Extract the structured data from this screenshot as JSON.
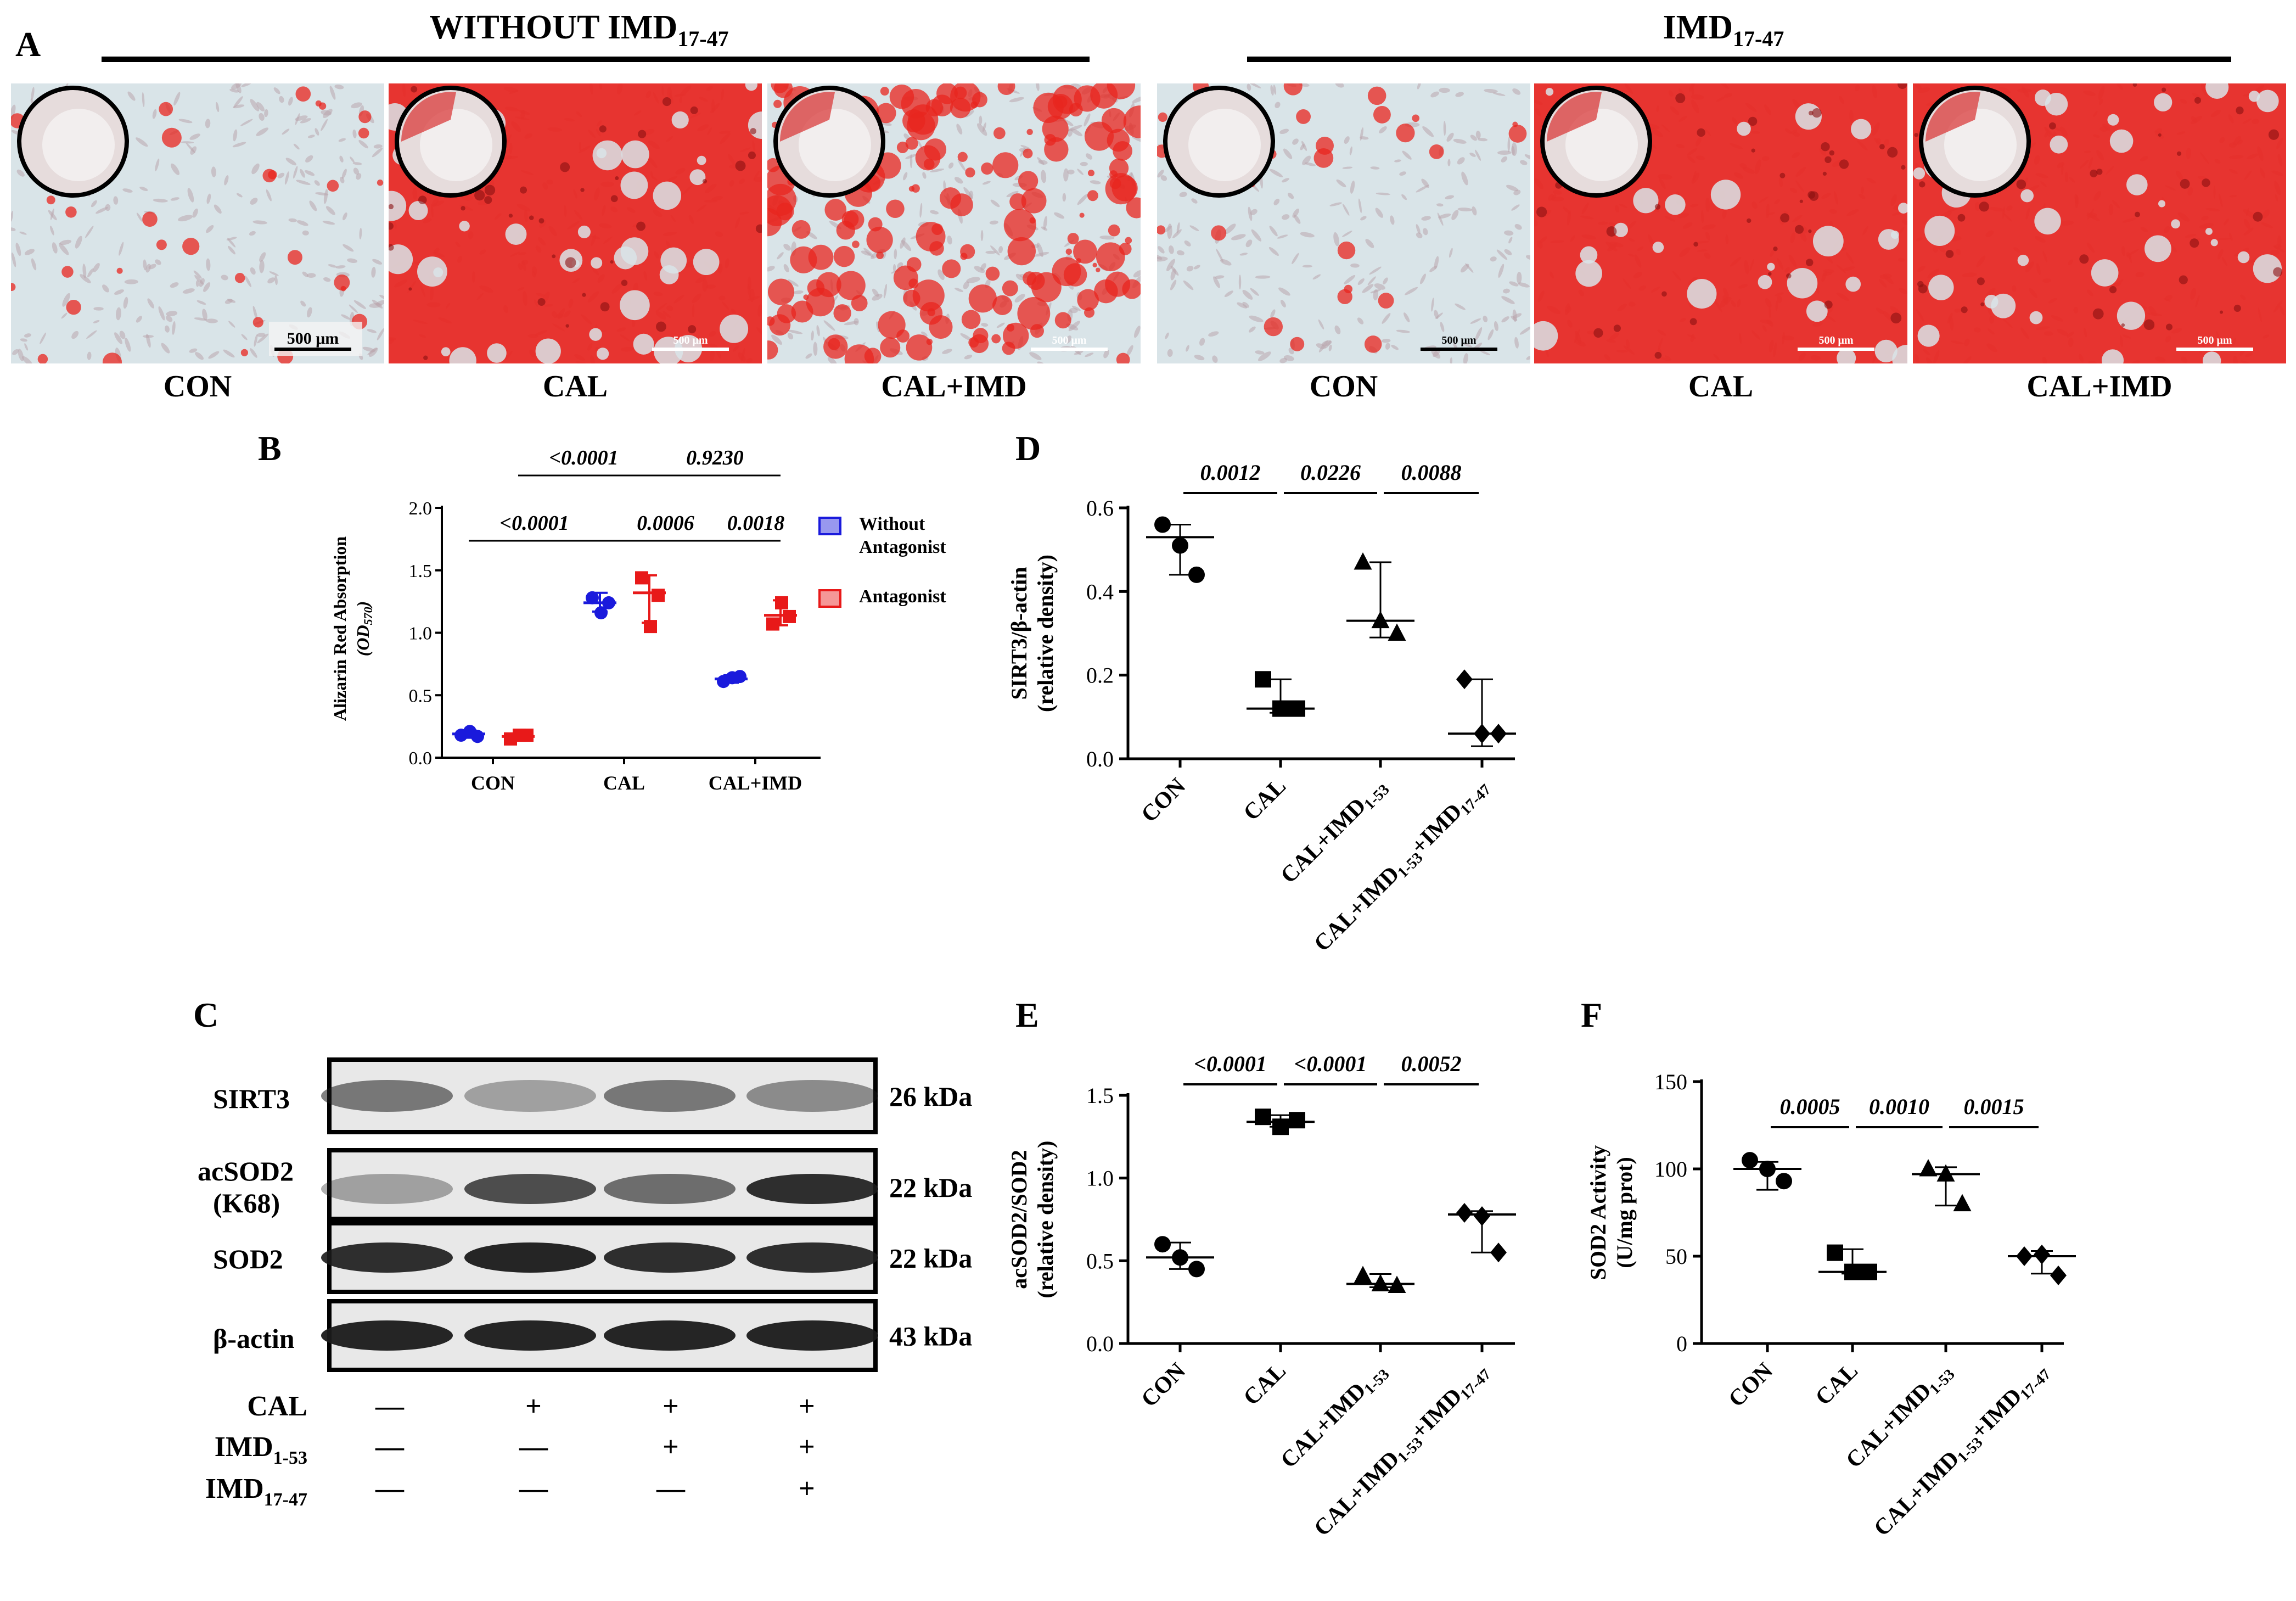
{
  "figure": {
    "panel_a": {
      "letter": "A",
      "group_left": {
        "title": "WITHOUT IMD",
        "sub": "17-47"
      },
      "group_right": {
        "title": "IMD",
        "sub": "17-47"
      },
      "images": [
        {
          "label": "CON",
          "scale": "500 μm",
          "stain": 0.06
        },
        {
          "label": "CAL",
          "scale": "500 μm",
          "stain": 0.8
        },
        {
          "label": "CAL+IMD",
          "scale": "500 μm",
          "stain": 0.4
        },
        {
          "label": "CON",
          "scale": "500 μm",
          "stain": 0.05
        },
        {
          "label": "CAL",
          "scale": "500 μm",
          "stain": 0.9
        },
        {
          "label": "CAL+IMD",
          "scale": "500 μm",
          "stain": 0.85
        }
      ],
      "colors": {
        "stain": "#e8251f",
        "background": "#d9e4e8"
      }
    },
    "panel_c": {
      "letter": "C",
      "bands": [
        {
          "name": "SIRT3",
          "kda": "26 kDa"
        },
        {
          "name": "acSOD2",
          "name2": "(K68)",
          "kda": "22 kDa"
        },
        {
          "name": "SOD2",
          "kda": "22 kDa"
        },
        {
          "name": "β-actin",
          "kda": "43 kDa"
        }
      ],
      "treatments": [
        {
          "name": "CAL",
          "sub": "",
          "marks": [
            "—",
            "+",
            "+",
            "+"
          ]
        },
        {
          "name": "IMD",
          "sub": "1-53",
          "marks": [
            "—",
            "—",
            "+",
            "+"
          ]
        },
        {
          "name": "IMD",
          "sub": "17-47",
          "marks": [
            "—",
            "—",
            "—",
            "+"
          ]
        }
      ]
    }
  },
  "chart_data": [
    {
      "panel": "B",
      "type": "scatter",
      "ylabel": "Alizarin Red Absorption",
      "ylabel2": "(OD",
      "ylabel2_sub": "570",
      "ylabel2_end": ")",
      "ylim": [
        0,
        2.0
      ],
      "yticks": [
        "0.0",
        "0.5",
        "1.0",
        "1.5",
        "2.0"
      ],
      "categories": [
        "CON",
        "CAL",
        "CAL+IMD"
      ],
      "legend": {
        "position": "right",
        "entries": [
          {
            "line1": "Without",
            "line2": "Antagonist"
          },
          {
            "line1": "Antagonist",
            "line2": ""
          }
        ]
      },
      "series": [
        {
          "name": "Without Antagonist",
          "color": "#1a1adc",
          "points": [
            [
              0.18,
              0.21,
              0.17
            ],
            [
              1.28,
              1.16,
              1.24
            ],
            [
              0.61,
              0.64,
              0.65
            ]
          ],
          "center": [
            0.19,
            1.24,
            0.63
          ],
          "err": [
            [
              0.16,
              0.22
            ],
            [
              1.17,
              1.32
            ],
            [
              0.6,
              0.66
            ]
          ]
        },
        {
          "name": "Antagonist",
          "color": "#e81919",
          "points": [
            [
              0.15,
              0.18,
              0.18
            ],
            [
              1.44,
              1.05,
              1.3
            ],
            [
              1.07,
              1.24,
              1.13
            ]
          ],
          "center": [
            0.17,
            1.32,
            1.14
          ],
          "err": [
            [
              0.15,
              0.19
            ],
            [
              1.08,
              1.46
            ],
            [
              1.06,
              1.26
            ]
          ]
        }
      ],
      "comparisons": [
        {
          "label": "<0.0001",
          "from": [
            0,
            0
          ],
          "to": [
            1,
            0
          ],
          "level": 0
        },
        {
          "label": "<0.0001",
          "from": [
            0,
            1
          ],
          "to": [
            1,
            1
          ],
          "level": 1
        },
        {
          "label": "0.0006",
          "from": [
            1,
            0
          ],
          "to": [
            2,
            0
          ],
          "level": 0
        },
        {
          "label": "0.9230",
          "from": [
            1,
            1
          ],
          "to": [
            2,
            1
          ],
          "level": 1
        },
        {
          "label": "0.0018",
          "from": [
            2,
            0
          ],
          "to": [
            2,
            1
          ],
          "level": 0
        }
      ]
    },
    {
      "panel": "D",
      "type": "scatter",
      "ylabel": "SIRT3/β-actin",
      "ylabel2": "(relative density)",
      "ylim": [
        0,
        0.6
      ],
      "yticks": [
        "0.0",
        "0.2",
        "0.4",
        "0.6"
      ],
      "categories": [
        {
          "parts": [
            [
              "CON",
              ""
            ]
          ]
        },
        {
          "parts": [
            [
              "CAL",
              ""
            ]
          ]
        },
        {
          "parts": [
            [
              "CAL+IMD",
              ""
            ],
            [
              "1-53",
              "sub"
            ]
          ]
        },
        {
          "parts": [
            [
              "CAL+IMD",
              ""
            ],
            [
              "1-53",
              "sub"
            ],
            [
              "+IMD",
              ""
            ],
            [
              "17-47",
              "sub"
            ]
          ]
        }
      ],
      "markers": [
        "circle",
        "square",
        "triangle",
        "diamond"
      ],
      "points": [
        [
          0.56,
          0.51,
          0.44
        ],
        [
          0.19,
          0.12,
          0.12
        ],
        [
          0.47,
          0.33,
          0.3
        ],
        [
          0.19,
          0.06,
          0.06
        ]
      ],
      "center": [
        0.53,
        0.12,
        0.33,
        0.06
      ],
      "err": [
        [
          0.44,
          0.56
        ],
        [
          0.11,
          0.19
        ],
        [
          0.29,
          0.47
        ],
        [
          0.03,
          0.19
        ]
      ],
      "comparisons": [
        {
          "label": "0.0012",
          "from": 0,
          "to": 1
        },
        {
          "label": "0.0226",
          "from": 1,
          "to": 2
        },
        {
          "label": "0.0088",
          "from": 2,
          "to": 3
        }
      ]
    },
    {
      "panel": "E",
      "type": "scatter",
      "ylabel": "acSOD2/SOD2",
      "ylabel2": "(relative density)",
      "ylim": [
        0,
        1.5
      ],
      "yticks": [
        "0.0",
        "0.5",
        "1.0",
        "1.5"
      ],
      "categories": [
        {
          "parts": [
            [
              "CON",
              ""
            ]
          ]
        },
        {
          "parts": [
            [
              "CAL",
              ""
            ]
          ]
        },
        {
          "parts": [
            [
              "CAL+IMD",
              ""
            ],
            [
              "1-53",
              "sub"
            ]
          ]
        },
        {
          "parts": [
            [
              "CAL+IMD",
              ""
            ],
            [
              "1-53",
              "sub"
            ],
            [
              "+IMD",
              ""
            ],
            [
              "17-47",
              "sub"
            ]
          ]
        }
      ],
      "markers": [
        "circle",
        "square",
        "triangle",
        "diamond"
      ],
      "points": [
        [
          0.6,
          0.52,
          0.45
        ],
        [
          1.37,
          1.31,
          1.35
        ],
        [
          0.41,
          0.36,
          0.35
        ],
        [
          0.79,
          0.77,
          0.55
        ]
      ],
      "center": [
        0.52,
        1.34,
        0.36,
        0.78
      ],
      "err": [
        [
          0.45,
          0.61
        ],
        [
          1.31,
          1.38
        ],
        [
          0.34,
          0.42
        ],
        [
          0.55,
          0.8
        ]
      ],
      "comparisons": [
        {
          "label": "<0.0001",
          "from": 0,
          "to": 1
        },
        {
          "label": "<0.0001",
          "from": 1,
          "to": 2
        },
        {
          "label": "0.0052",
          "from": 2,
          "to": 3
        }
      ]
    },
    {
      "panel": "F",
      "type": "scatter",
      "ylabel": "SOD2 Activity",
      "ylabel2": "(U/mg prot)",
      "ylim": [
        0,
        150
      ],
      "yticks": [
        "0",
        "50",
        "100",
        "150"
      ],
      "categories": [
        {
          "parts": [
            [
              "CON",
              ""
            ]
          ]
        },
        {
          "parts": [
            [
              "CAL",
              ""
            ]
          ]
        },
        {
          "parts": [
            [
              "CAL+IMD",
              ""
            ],
            [
              "1-53",
              "sub"
            ]
          ]
        },
        {
          "parts": [
            [
              "CAL+IMD",
              ""
            ],
            [
              "1-53",
              "sub"
            ],
            [
              "+IMD",
              ""
            ],
            [
              "17-47",
              "sub"
            ]
          ]
        }
      ],
      "markers": [
        "circle",
        "square",
        "triangle",
        "diamond"
      ],
      "points": [
        [
          105,
          100,
          93
        ],
        [
          52,
          41,
          41
        ],
        [
          100,
          97,
          80
        ],
        [
          50,
          51,
          39
        ]
      ],
      "center": [
        100,
        41,
        97,
        50
      ],
      "err": [
        [
          88,
          104
        ],
        [
          40,
          54
        ],
        [
          79,
          101
        ],
        [
          40,
          53
        ]
      ],
      "comparisons": [
        {
          "label": "0.0005",
          "from": 0,
          "to": 1
        },
        {
          "label": "0.0010",
          "from": 1,
          "to": 2
        },
        {
          "label": "0.0015",
          "from": 2,
          "to": 3
        }
      ]
    }
  ]
}
